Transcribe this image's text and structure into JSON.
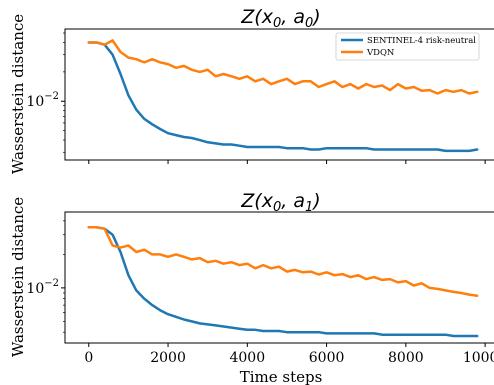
{
  "chart_data": [
    {
      "type": "line",
      "title": "Z(x0, a0)",
      "title_parts": {
        "base": "Z(",
        "var1": "x",
        "sub1": "0",
        "sep": ", ",
        "var2": "a",
        "sub2": "0",
        "end": ")"
      },
      "xlabel": "",
      "ylabel": "Wasserstein distance",
      "yscale": "log",
      "xlim": [
        -600,
        10300
      ],
      "ylim": [
        0.0025,
        0.055
      ],
      "ytick_labels": [
        {
          "base": "10",
          "exp": "−2",
          "value": 0.01
        }
      ],
      "legend": {
        "placement": "top-right",
        "entries": [
          "SENTINEL-4 risk-neutral",
          "VDQN"
        ]
      },
      "grid": false,
      "series": [
        {
          "name": "SENTINEL-4 risk-neutral",
          "color": "#1f77b4",
          "x": [
            0,
            200,
            400,
            600,
            800,
            1000,
            1200,
            1400,
            1600,
            1800,
            2000,
            2200,
            2400,
            2600,
            2800,
            3000,
            3200,
            3400,
            3600,
            3800,
            4000,
            4200,
            4400,
            4600,
            4800,
            5000,
            5200,
            5400,
            5600,
            5800,
            6000,
            6200,
            6400,
            6600,
            6800,
            7000,
            7200,
            7400,
            7600,
            7800,
            8000,
            8200,
            8400,
            8600,
            8800,
            9000,
            9200,
            9400,
            9600,
            9800
          ],
          "y": [
            0.04,
            0.04,
            0.038,
            0.03,
            0.019,
            0.0115,
            0.0082,
            0.0066,
            0.0058,
            0.0052,
            0.0047,
            0.0045,
            0.0043,
            0.0042,
            0.004,
            0.0038,
            0.0037,
            0.0036,
            0.0036,
            0.0035,
            0.0034,
            0.0034,
            0.0034,
            0.0034,
            0.0034,
            0.0033,
            0.0033,
            0.0033,
            0.0032,
            0.0032,
            0.0033,
            0.0033,
            0.0033,
            0.0033,
            0.0033,
            0.0033,
            0.0032,
            0.0032,
            0.0032,
            0.0032,
            0.0032,
            0.0032,
            0.0032,
            0.0032,
            0.0032,
            0.0031,
            0.0031,
            0.0031,
            0.0031,
            0.0032
          ]
        },
        {
          "name": "VDQN",
          "color": "#ff7f0e",
          "x": [
            0,
            200,
            400,
            600,
            800,
            1000,
            1200,
            1400,
            1600,
            1800,
            2000,
            2200,
            2400,
            2600,
            2800,
            3000,
            3200,
            3400,
            3600,
            3800,
            4000,
            4200,
            4400,
            4600,
            4800,
            5000,
            5200,
            5400,
            5600,
            5800,
            6000,
            6200,
            6400,
            6600,
            6800,
            7000,
            7200,
            7400,
            7600,
            7800,
            8000,
            8200,
            8400,
            8600,
            8800,
            9000,
            9200,
            9400,
            9600,
            9800
          ],
          "y": [
            0.04,
            0.04,
            0.038,
            0.042,
            0.032,
            0.028,
            0.027,
            0.025,
            0.027,
            0.025,
            0.024,
            0.022,
            0.023,
            0.021,
            0.02,
            0.021,
            0.018,
            0.019,
            0.018,
            0.017,
            0.018,
            0.016,
            0.017,
            0.015,
            0.016,
            0.017,
            0.015,
            0.016,
            0.016,
            0.014,
            0.015,
            0.016,
            0.014,
            0.015,
            0.0135,
            0.015,
            0.014,
            0.0145,
            0.013,
            0.015,
            0.0135,
            0.014,
            0.0128,
            0.013,
            0.012,
            0.013,
            0.0125,
            0.013,
            0.012,
            0.0125
          ]
        }
      ]
    },
    {
      "type": "line",
      "title": "Z(x0, a1)",
      "title_parts": {
        "base": "Z(",
        "var1": "x",
        "sub1": "0",
        "sep": ", ",
        "var2": "a",
        "sub2": "1",
        "end": ")"
      },
      "xlabel": "Time steps",
      "ylabel": "Wasserstein distance",
      "yscale": "log",
      "xlim": [
        -600,
        10300
      ],
      "ylim": [
        0.0032,
        0.048
      ],
      "xticks": [
        0,
        2000,
        4000,
        6000,
        8000,
        10000
      ],
      "ytick_labels": [
        {
          "base": "10",
          "exp": "−2",
          "value": 0.01
        }
      ],
      "grid": false,
      "series": [
        {
          "name": "SENTINEL-4 risk-neutral",
          "color": "#1f77b4",
          "x": [
            0,
            200,
            400,
            600,
            800,
            1000,
            1200,
            1400,
            1600,
            1800,
            2000,
            2200,
            2400,
            2600,
            2800,
            3000,
            3200,
            3400,
            3600,
            3800,
            4000,
            4200,
            4400,
            4600,
            4800,
            5000,
            5200,
            5400,
            5600,
            5800,
            6000,
            6200,
            6400,
            6600,
            6800,
            7000,
            7200,
            7400,
            7600,
            7800,
            8000,
            8200,
            8400,
            8600,
            8800,
            9000,
            9200,
            9400,
            9600,
            9800
          ],
          "y": [
            0.035,
            0.035,
            0.034,
            0.03,
            0.021,
            0.013,
            0.0095,
            0.008,
            0.007,
            0.0063,
            0.0058,
            0.0055,
            0.0052,
            0.005,
            0.0048,
            0.0047,
            0.0046,
            0.0045,
            0.0044,
            0.0043,
            0.0042,
            0.0042,
            0.0041,
            0.0041,
            0.0041,
            0.004,
            0.004,
            0.004,
            0.004,
            0.004,
            0.0039,
            0.0039,
            0.0039,
            0.0039,
            0.0039,
            0.0039,
            0.0039,
            0.0038,
            0.0038,
            0.0038,
            0.0038,
            0.0038,
            0.0038,
            0.0038,
            0.0038,
            0.0038,
            0.0037,
            0.0037,
            0.0037,
            0.0037
          ]
        },
        {
          "name": "VDQN",
          "color": "#ff7f0e",
          "x": [
            0,
            200,
            400,
            600,
            800,
            1000,
            1200,
            1400,
            1600,
            1800,
            2000,
            2200,
            2400,
            2600,
            2800,
            3000,
            3200,
            3400,
            3600,
            3800,
            4000,
            4200,
            4400,
            4600,
            4800,
            5000,
            5200,
            5400,
            5600,
            5800,
            6000,
            6200,
            6400,
            6600,
            6800,
            7000,
            7200,
            7400,
            7600,
            7800,
            8000,
            8200,
            8400,
            8600,
            8800,
            9000,
            9200,
            9400,
            9600,
            9800
          ],
          "y": [
            0.035,
            0.035,
            0.034,
            0.024,
            0.023,
            0.024,
            0.021,
            0.022,
            0.02,
            0.02,
            0.019,
            0.02,
            0.019,
            0.018,
            0.0185,
            0.017,
            0.0175,
            0.0165,
            0.017,
            0.016,
            0.0165,
            0.015,
            0.016,
            0.015,
            0.0155,
            0.014,
            0.0145,
            0.0138,
            0.014,
            0.0132,
            0.0138,
            0.013,
            0.0133,
            0.0125,
            0.013,
            0.012,
            0.0125,
            0.0118,
            0.012,
            0.0112,
            0.0115,
            0.0105,
            0.011,
            0.01,
            0.0098,
            0.0095,
            0.0092,
            0.009,
            0.0087,
            0.0085
          ]
        }
      ]
    }
  ]
}
